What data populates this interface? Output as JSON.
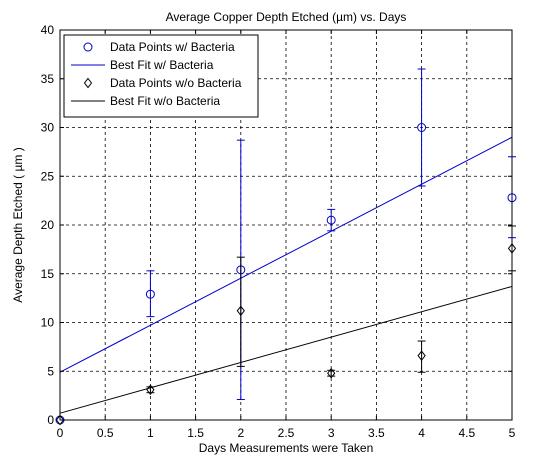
{
  "chart_data": {
    "type": "scatter",
    "title": "Average Copper Depth Etched (µm) vs. Days",
    "xlabel": "Days Measurements were Taken",
    "ylabel": "Average Depth Etched ( µm )",
    "xlim": [
      0,
      5
    ],
    "ylim": [
      0,
      40
    ],
    "x_ticks": [
      "0",
      "0.5",
      "1",
      "1.5",
      "2",
      "2.5",
      "3",
      "3.5",
      "4",
      "4.5",
      "5"
    ],
    "y_ticks": [
      "0",
      "5",
      "10",
      "15",
      "20",
      "25",
      "30",
      "35",
      "40"
    ],
    "grid": true,
    "legend_position": "top-left",
    "series": [
      {
        "name": "Data Points w/ Bacteria",
        "kind": "points",
        "marker": "circle",
        "color": "#0000cc",
        "x": [
          0,
          1,
          2,
          3,
          4,
          5
        ],
        "y": [
          0.0,
          12.9,
          15.4,
          20.5,
          30.0,
          22.8
        ],
        "err_low": [
          0.0,
          10.6,
          2.1,
          19.4,
          24.0,
          18.7
        ],
        "err_high": [
          0.0,
          15.3,
          28.7,
          21.6,
          36.0,
          27.0
        ]
      },
      {
        "name": "Best Fit w/ Bacteria",
        "kind": "line",
        "color": "#0000cc",
        "x": [
          0,
          5
        ],
        "y": [
          4.9,
          29.0
        ]
      },
      {
        "name": "Data Points w/o Bacteria",
        "kind": "points",
        "marker": "diamond",
        "color": "#000000",
        "x": [
          0,
          1,
          2,
          3,
          4,
          5
        ],
        "y": [
          0.0,
          3.1,
          11.2,
          4.8,
          6.6,
          17.6
        ],
        "err_low": [
          0.0,
          2.8,
          5.5,
          4.5,
          4.9,
          15.3
        ],
        "err_high": [
          0.0,
          3.4,
          16.7,
          5.1,
          8.1,
          19.9
        ]
      },
      {
        "name": "Best Fit w/o Bacteria",
        "kind": "line",
        "color": "#000000",
        "x": [
          0,
          5
        ],
        "y": [
          0.7,
          13.7
        ]
      }
    ]
  }
}
